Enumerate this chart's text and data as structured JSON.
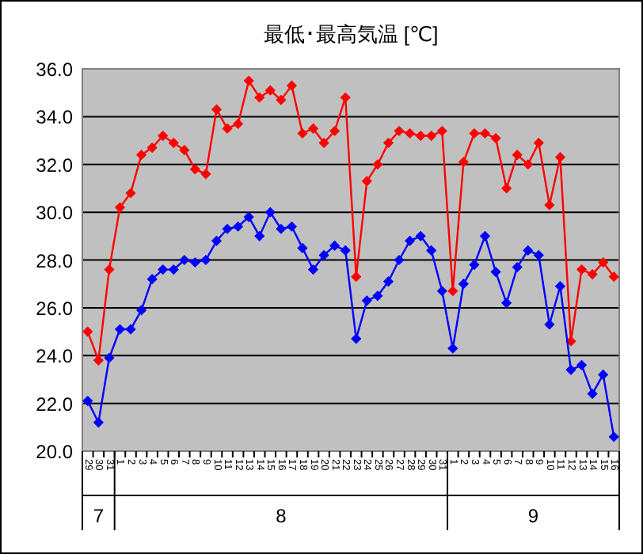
{
  "chart_data": {
    "type": "line",
    "title": "最低･最高気温 [℃]",
    "categories": [
      "29",
      "30",
      "31",
      "1",
      "2",
      "3",
      "4",
      "5",
      "6",
      "7",
      "8",
      "9",
      "10",
      "11",
      "12",
      "13",
      "14",
      "15",
      "16",
      "17",
      "18",
      "19",
      "20",
      "21",
      "22",
      "23",
      "24",
      "25",
      "26",
      "27",
      "28",
      "29",
      "30",
      "31",
      "1",
      "2",
      "3",
      "4",
      "5",
      "6",
      "7",
      "8",
      "9",
      "10",
      "11",
      "12",
      "13",
      "14",
      "15",
      "16"
    ],
    "series": [
      {
        "color": "#ff0000",
        "values": [
          25.0,
          23.8,
          27.6,
          30.2,
          30.8,
          32.4,
          32.7,
          33.2,
          32.9,
          32.6,
          31.8,
          31.6,
          34.3,
          33.5,
          33.7,
          35.5,
          34.8,
          35.1,
          34.7,
          35.3,
          33.3,
          33.5,
          32.9,
          33.4,
          34.8,
          27.3,
          31.3,
          32.0,
          32.9,
          33.4,
          33.3,
          33.2,
          33.2,
          33.4,
          26.7,
          32.1,
          33.3,
          33.3,
          33.1,
          31.0,
          32.4,
          32.0,
          32.9,
          30.3,
          32.3,
          24.6,
          27.6,
          27.4,
          27.9,
          27.3
        ]
      },
      {
        "color": "#0000ff",
        "values": [
          22.1,
          21.2,
          23.9,
          25.1,
          25.1,
          25.9,
          27.2,
          27.6,
          27.6,
          28.0,
          27.9,
          28.0,
          28.8,
          29.3,
          29.4,
          29.8,
          29.0,
          30.0,
          29.3,
          29.4,
          28.5,
          27.6,
          28.2,
          28.6,
          28.4,
          24.7,
          26.3,
          26.5,
          27.1,
          28.0,
          28.8,
          29.0,
          28.4,
          26.7,
          24.3,
          27.0,
          27.8,
          29.0,
          27.5,
          26.2,
          27.7,
          28.4,
          28.2,
          25.3,
          26.9,
          23.4,
          23.6,
          22.4,
          23.2,
          20.6
        ]
      }
    ],
    "ylim": [
      20,
      36
    ],
    "yticks": [
      {
        "value": 20,
        "label": "20.0"
      },
      {
        "value": 22,
        "label": "22.0"
      },
      {
        "value": 24,
        "label": "24.0"
      },
      {
        "value": 26,
        "label": "26.0"
      },
      {
        "value": 28,
        "label": "28.0"
      },
      {
        "value": 30,
        "label": "30.0"
      },
      {
        "value": 32,
        "label": "32.0"
      },
      {
        "value": 34,
        "label": "34.0"
      },
      {
        "value": 36,
        "label": "36.0"
      }
    ],
    "annotations": [
      "7",
      "8",
      "9"
    ],
    "grid": "y",
    "marker": "diamond",
    "line_style": "solid"
  }
}
